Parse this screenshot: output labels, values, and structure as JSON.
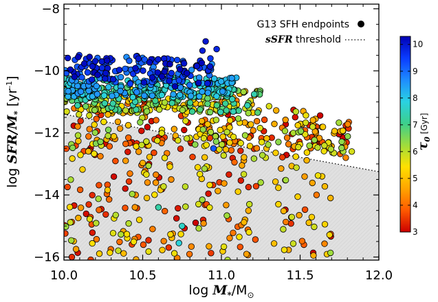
{
  "chart_data": {
    "type": "scatter",
    "xlabel": {
      "prefix": "log ",
      "main": "M",
      "sub": "*",
      "rest": "/M",
      "sun": "⊙"
    },
    "ylabel": {
      "prefix": "log ",
      "main": "SFR/M",
      "sub": "*",
      "unit": " [yr",
      "exp": "-1",
      "close": "]"
    },
    "xlim": [
      10.0,
      12.0
    ],
    "ylim": [
      -16.1,
      -7.85
    ],
    "xticks": [
      "10.0",
      "10.5",
      "11.0",
      "11.5",
      "12.0"
    ],
    "yticks": [
      "-8",
      "-10",
      "-12",
      "-14",
      "-16"
    ],
    "legend": {
      "placement": "top-right",
      "endpoints_label": "G13 SFH endpoints",
      "threshold_label_bold": "sSFR",
      "threshold_label_rest": " threshold"
    },
    "threshold_line": {
      "style": "dotted",
      "x": [
        10.0,
        12.0
      ],
      "y": [
        -11.4,
        -13.25
      ]
    },
    "colorbar": {
      "label_symbol": "τ",
      "label_sub": "0",
      "label_unit": " [Gyr]",
      "min": 3,
      "max": 10.3,
      "ticks": [
        "3",
        "4",
        "5",
        "6",
        "7",
        "8",
        "9",
        "10"
      ],
      "colormap": [
        "#cc0000",
        "#ff5a00",
        "#ffa500",
        "#ffe000",
        "#9fdc3c",
        "#3ccf8c",
        "#2ad2e2",
        "#1e8cff",
        "#0a3cff",
        "#0000b4"
      ]
    },
    "point_groups": [
      {
        "name": "high",
        "count": 170,
        "x": [
          10.0,
          10.95
        ],
        "y": [
          -10.3,
          -9.45
        ],
        "tau": [
          8.6,
          10.3
        ]
      },
      {
        "name": "mid",
        "count": 240,
        "x": [
          10.0,
          11.1
        ],
        "y": [
          -10.85,
          -10.2
        ],
        "tau": [
          6.8,
          8.7
        ]
      },
      {
        "name": "ridge",
        "count": 240,
        "x": [
          10.0,
          11.25
        ],
        "y": [
          -11.35,
          -10.55
        ],
        "tau": [
          4.8,
          7.5
        ]
      },
      {
        "name": "disp",
        "count": 260,
        "x": [
          10.05,
          11.85
        ],
        "y": [
          -12.6,
          -10.7
        ],
        "tau": [
          3.0,
          6.5
        ]
      },
      {
        "name": "low",
        "count": 280,
        "x": [
          10.0,
          11.7
        ],
        "y": [
          -16.1,
          -12.0
        ],
        "tau": [
          3.0,
          6.3
        ]
      }
    ],
    "outliers": [
      {
        "x": 10.88,
        "y": -9.35,
        "tau": 9.9
      },
      {
        "x": 10.9,
        "y": -9.05,
        "tau": 10.0
      },
      {
        "x": 10.93,
        "y": -9.6,
        "tau": 9.6
      },
      {
        "x": 10.97,
        "y": -9.3,
        "tau": 9.8
      },
      {
        "x": 10.58,
        "y": -10.3,
        "tau": 6.0
      },
      {
        "x": 11.52,
        "y": -11.3,
        "tau": 4.7
      },
      {
        "x": 11.6,
        "y": -12.0,
        "tau": 4.5
      },
      {
        "x": 11.79,
        "y": -12.8,
        "tau": 4.3
      },
      {
        "x": 10.95,
        "y": -12.5,
        "tau": 9.2
      },
      {
        "x": 10.75,
        "y": -15.0,
        "tau": 7.6
      },
      {
        "x": 10.6,
        "y": -14.4,
        "tau": 7.3
      },
      {
        "x": 10.73,
        "y": -15.55,
        "tau": 7.8
      },
      {
        "x": 10.05,
        "y": -16.0,
        "tau": 3.4
      }
    ]
  }
}
